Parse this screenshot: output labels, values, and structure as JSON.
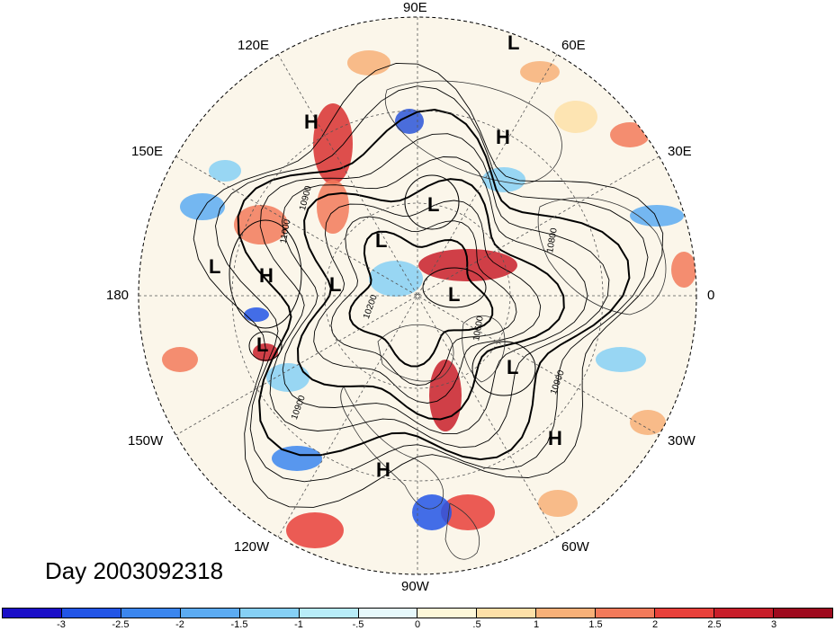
{
  "title": "Day 2003092318",
  "longitude_labels": {
    "lon_90E": "90E",
    "lon_60E": "60E",
    "lon_30E": "30E",
    "lon_0": "0",
    "lon_30W": "30W",
    "lon_60W": "60W",
    "lon_90W": "90W",
    "lon_120W": "120W",
    "lon_150W": "150W",
    "lon_180": "180",
    "lon_150E": "150E",
    "lon_120E": "120E"
  },
  "pressure_centers": {
    "c1": "L",
    "c2": "H",
    "c3": "H",
    "c4": "L",
    "c5": "L",
    "c6": "L",
    "c7": "H",
    "c8": "L",
    "c9": "L",
    "c10": "L",
    "c11": "L",
    "c12": "H",
    "c13": "H"
  },
  "contour_labels": {
    "k1": "10900",
    "k2": "11000",
    "k3": "10200",
    "k4": "10600",
    "k5": "10900",
    "k6": "10900",
    "k7": "10800"
  },
  "colorbar": {
    "colors": [
      "#1a0fc8",
      "#2255e6",
      "#3b86ee",
      "#5cabf2",
      "#86d0f5",
      "#b8ecf8",
      "#e6f8fb",
      "#fdf7d8",
      "#fde0a8",
      "#f7b078",
      "#f27a5a",
      "#e8403a",
      "#c81e2a",
      "#9e0a1e"
    ],
    "ticks": [
      "-3",
      "-2.5",
      "-2",
      "-1.5",
      "-1",
      "-.5",
      "0",
      ".5",
      "1",
      "1.5",
      "2",
      "2.5",
      "3"
    ]
  }
}
